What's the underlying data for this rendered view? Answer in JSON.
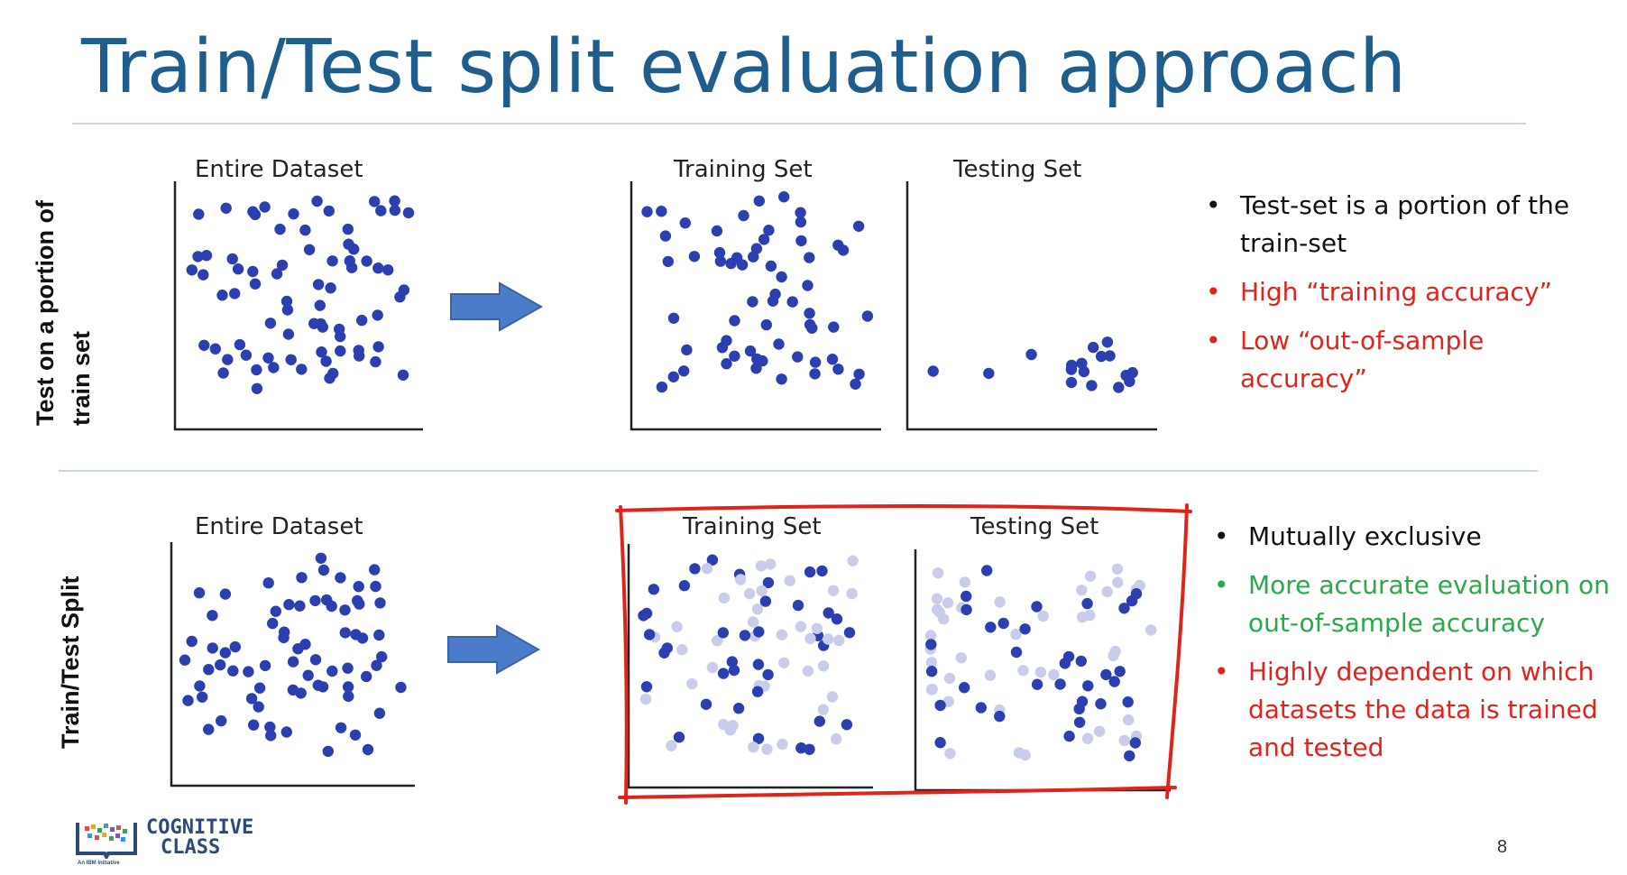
{
  "title": "Train/Test split evaluation approach",
  "colors": {
    "title": "#1f5e8c",
    "dot_dark": "#2b3fb0",
    "dot_light": "#c9cdea",
    "arrow": "#4a7cc9",
    "highlight_box": "#e0231b",
    "red_text": "#e0231b",
    "green_text": "#2aa84a"
  },
  "sections": [
    {
      "row_label": "Test on a portion of train set",
      "plots": [
        "Entire Dataset",
        "Training Set",
        "Testing Set"
      ],
      "bullets": [
        {
          "text": "Test-set is a portion of the train-set",
          "color": "black"
        },
        {
          "text": "High “training accuracy”",
          "color": "red"
        },
        {
          "text": "Low “out-of-sample accuracy”",
          "color": "red"
        }
      ]
    },
    {
      "row_label": "Train/Test Split",
      "plots": [
        "Entire Dataset",
        "Training Set",
        "Testing Set"
      ],
      "bullets": [
        {
          "text": "Mutually exclusive",
          "color": "black"
        },
        {
          "text": "More accurate evaluation on out-of-sample accuracy",
          "color": "green"
        },
        {
          "text": "Highly dependent on which datasets the data is trained and tested",
          "color": "red"
        }
      ]
    }
  ],
  "logo": {
    "line1": "COGNITIVE",
    "line2": "CLASS",
    "tagline": "An IBM Initiative"
  },
  "page_number": "8",
  "icons": [
    "right-arrow-icon",
    "cognitive-class-logo-icon"
  ]
}
